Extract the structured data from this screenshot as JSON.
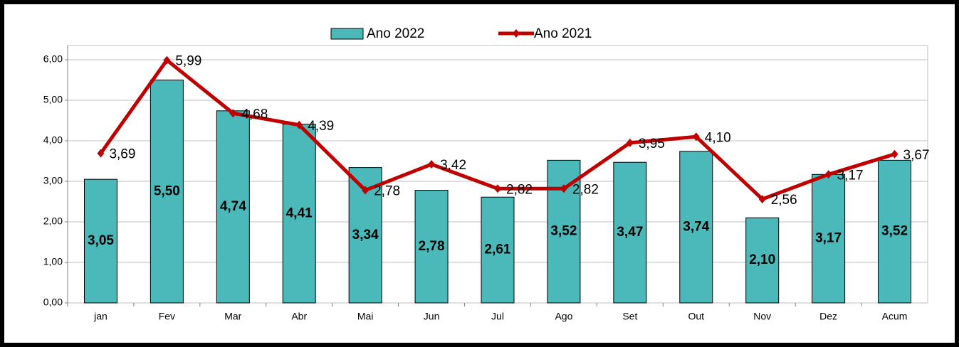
{
  "chart_data": {
    "type": "bar_line",
    "categories": [
      "jan",
      "Fev",
      "Mar",
      "Abr",
      "Mai",
      "Jun",
      "Jul",
      "Ago",
      "Set",
      "Out",
      "Nov",
      "Dez",
      "Acum"
    ],
    "series": [
      {
        "name": "Ano 2022",
        "type": "bar",
        "color": "#4bb9b9",
        "values": [
          3.05,
          5.5,
          4.74,
          4.41,
          3.34,
          2.78,
          2.61,
          3.52,
          3.47,
          3.74,
          2.1,
          3.17,
          3.52
        ],
        "value_labels": [
          "3,05",
          "5,50",
          "4,74",
          "4,41",
          "3,34",
          "2,78",
          "2,61",
          "3,52",
          "3,47",
          "3,74",
          "2,10",
          "3,17",
          "3,52"
        ]
      },
      {
        "name": "Ano 2021",
        "type": "line",
        "color": "#c00000",
        "values": [
          3.69,
          5.99,
          4.68,
          4.39,
          2.78,
          3.42,
          2.82,
          2.82,
          3.95,
          4.1,
          2.56,
          3.17,
          3.67
        ],
        "value_labels": [
          "3,69",
          "5,99",
          "4,68",
          "4,39",
          "2,78",
          "3,42",
          "2,82",
          "2,82",
          "3,95",
          "4,10",
          "2,56",
          "3,17",
          "3,67"
        ]
      }
    ],
    "ylim": [
      0,
      6
    ],
    "yticks": [
      {
        "value": 0,
        "label": "0,00"
      },
      {
        "value": 1,
        "label": "1,00"
      },
      {
        "value": 2,
        "label": "2,00"
      },
      {
        "value": 3,
        "label": "3,00"
      },
      {
        "value": 4,
        "label": "4,00"
      },
      {
        "value": 5,
        "label": "5,00"
      },
      {
        "value": 6,
        "label": "6,00"
      }
    ],
    "grid": true,
    "legend": "top"
  }
}
